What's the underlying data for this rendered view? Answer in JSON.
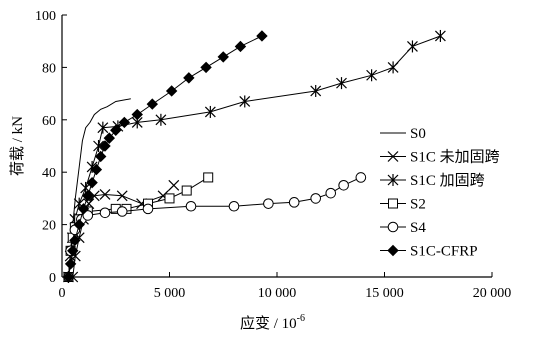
{
  "chart_data": {
    "type": "line",
    "xlabel": "应变 / 10",
    "xlabel_exp": "-6",
    "ylabel": "荷载 / kN",
    "xlim": [
      0,
      20000
    ],
    "ylim": [
      0,
      100
    ],
    "x_ticks": [
      0,
      5000,
      10000,
      15000,
      20000
    ],
    "x_tick_labels": [
      "0",
      "5 000",
      "10 000",
      "15 000",
      "20 000"
    ],
    "y_ticks": [
      0,
      20,
      40,
      60,
      80,
      100
    ],
    "y_tick_labels": [
      "0",
      "20",
      "40",
      "60",
      "80",
      "100"
    ],
    "grid": false,
    "legend_position": "right",
    "series": [
      {
        "name": "S0",
        "marker": "none",
        "points": [
          [
            300,
            0
          ],
          [
            380,
            8
          ],
          [
            480,
            18
          ],
          [
            620,
            30
          ],
          [
            800,
            42
          ],
          [
            950,
            52
          ],
          [
            1100,
            57
          ],
          [
            1300,
            59
          ],
          [
            1500,
            62
          ],
          [
            1800,
            64
          ],
          [
            2100,
            65
          ],
          [
            2500,
            67
          ],
          [
            3200,
            68
          ]
        ]
      },
      {
        "name": "S1C 未加固跨",
        "marker": "x",
        "points": [
          [
            500,
            0
          ],
          [
            620,
            8
          ],
          [
            800,
            15
          ],
          [
            1000,
            22
          ],
          [
            1250,
            28
          ],
          [
            1500,
            31
          ],
          [
            2000,
            31.5
          ],
          [
            2800,
            31
          ],
          [
            3700,
            28
          ],
          [
            4700,
            31
          ],
          [
            5200,
            35
          ]
        ]
      },
      {
        "name": "S1C 加固跨",
        "marker": "star",
        "points": [
          [
            300,
            0
          ],
          [
            380,
            8
          ],
          [
            480,
            15
          ],
          [
            600,
            22
          ],
          [
            800,
            28
          ],
          [
            1100,
            34
          ],
          [
            1400,
            42
          ],
          [
            1700,
            50
          ],
          [
            1900,
            57
          ],
          [
            2600,
            57.5
          ],
          [
            3500,
            59
          ],
          [
            4600,
            60
          ],
          [
            6900,
            63
          ],
          [
            8500,
            67
          ],
          [
            11800,
            71
          ],
          [
            13000,
            74
          ],
          [
            14400,
            77
          ],
          [
            15400,
            80
          ],
          [
            16300,
            88
          ],
          [
            17600,
            92
          ]
        ]
      },
      {
        "name": "S2",
        "marker": "square",
        "points": [
          [
            300,
            0
          ],
          [
            400,
            10
          ],
          [
            500,
            15
          ],
          [
            600,
            19
          ],
          [
            800,
            22
          ],
          [
            1200,
            25
          ],
          [
            2500,
            26
          ],
          [
            3000,
            26
          ],
          [
            4000,
            28
          ],
          [
            5000,
            30
          ],
          [
            5800,
            33
          ],
          [
            6800,
            38
          ]
        ]
      },
      {
        "name": "S4",
        "marker": "circle",
        "points": [
          [
            300,
            0
          ],
          [
            400,
            10
          ],
          [
            600,
            18
          ],
          [
            900,
            22
          ],
          [
            1200,
            23.5
          ],
          [
            2000,
            24.5
          ],
          [
            2800,
            25
          ],
          [
            4000,
            26
          ],
          [
            6000,
            27
          ],
          [
            8000,
            27
          ],
          [
            9600,
            28
          ],
          [
            10800,
            28.5
          ],
          [
            11800,
            30
          ],
          [
            12500,
            32
          ],
          [
            13100,
            35
          ],
          [
            13900,
            38
          ]
        ]
      },
      {
        "name": "S1C-CFRP",
        "marker": "diamond",
        "points": [
          [
            300,
            0
          ],
          [
            400,
            5
          ],
          [
            500,
            10
          ],
          [
            600,
            14
          ],
          [
            800,
            20
          ],
          [
            1000,
            26
          ],
          [
            1200,
            31
          ],
          [
            1400,
            36
          ],
          [
            1600,
            41
          ],
          [
            1800,
            46
          ],
          [
            2000,
            50
          ],
          [
            2200,
            53
          ],
          [
            2500,
            56
          ],
          [
            2900,
            59
          ],
          [
            3500,
            62
          ],
          [
            4200,
            66
          ],
          [
            5100,
            71
          ],
          [
            5900,
            76
          ],
          [
            6700,
            80
          ],
          [
            7500,
            84
          ],
          [
            8300,
            88
          ],
          [
            9300,
            92
          ]
        ]
      }
    ]
  }
}
